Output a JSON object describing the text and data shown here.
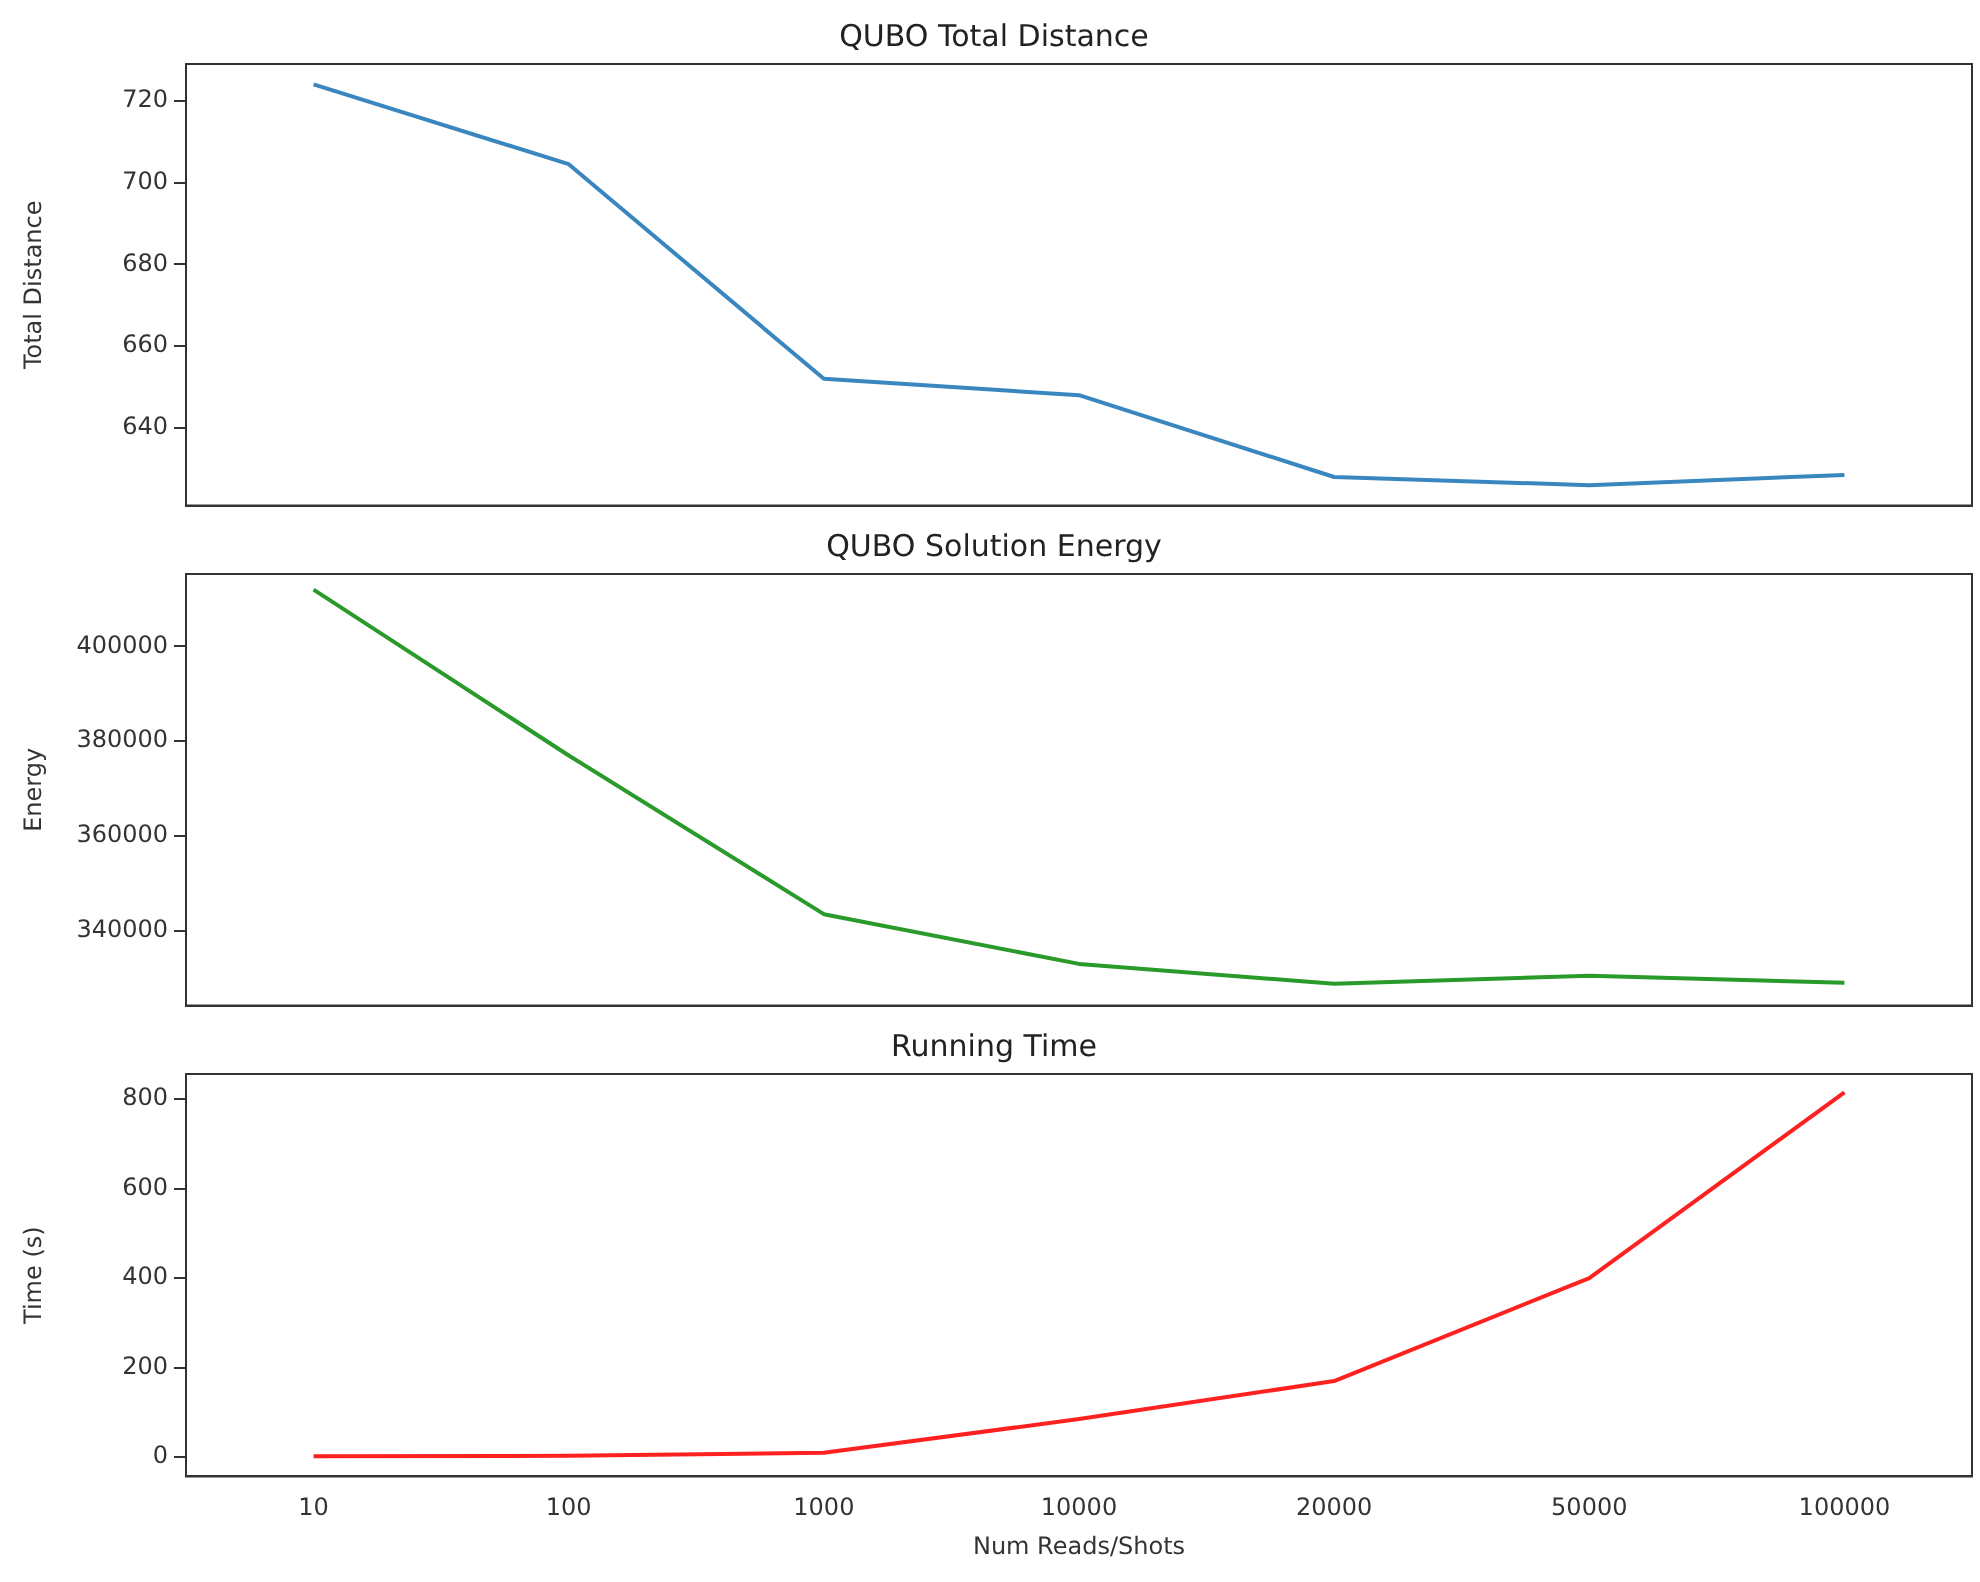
{
  "chart_data": [
    {
      "type": "line",
      "title": "QUBO Total Distance",
      "ylabel": "Total Distance",
      "categories": [
        "10",
        "100",
        "1000",
        "10000",
        "20000",
        "50000",
        "100000"
      ],
      "series": [
        {
          "color": "#3a87c0",
          "values": [
            724,
            704.5,
            652,
            648,
            628,
            626,
            628.5
          ]
        }
      ],
      "ylim": [
        621,
        729
      ],
      "yticks": [
        640,
        660,
        680,
        700,
        720
      ],
      "tick_labels": "y"
    },
    {
      "type": "line",
      "title": "QUBO Solution Energy",
      "ylabel": "Energy",
      "categories": [
        "10",
        "100",
        "1000",
        "10000",
        "20000",
        "50000",
        "100000"
      ],
      "series": [
        {
          "color": "#2a9a2a",
          "values": [
            412000,
            377000,
            343500,
            333000,
            328800,
            330500,
            329000
          ]
        }
      ],
      "ylim": [
        324200,
        415300
      ],
      "yticks": [
        340000,
        360000,
        380000,
        400000
      ],
      "tick_labels": "y"
    },
    {
      "type": "line",
      "title": "Running Time",
      "ylabel": "Time (s)",
      "xlabel": "Num Reads/Shots",
      "categories": [
        "10",
        "100",
        "1000",
        "10000",
        "20000",
        "50000",
        "100000"
      ],
      "series": [
        {
          "color": "#ff2020",
          "values": [
            2,
            3,
            10,
            85,
            170,
            400,
            815
          ]
        }
      ],
      "ylim": [
        -43,
        856
      ],
      "yticks": [
        0,
        200,
        400,
        600,
        800
      ]
    }
  ]
}
